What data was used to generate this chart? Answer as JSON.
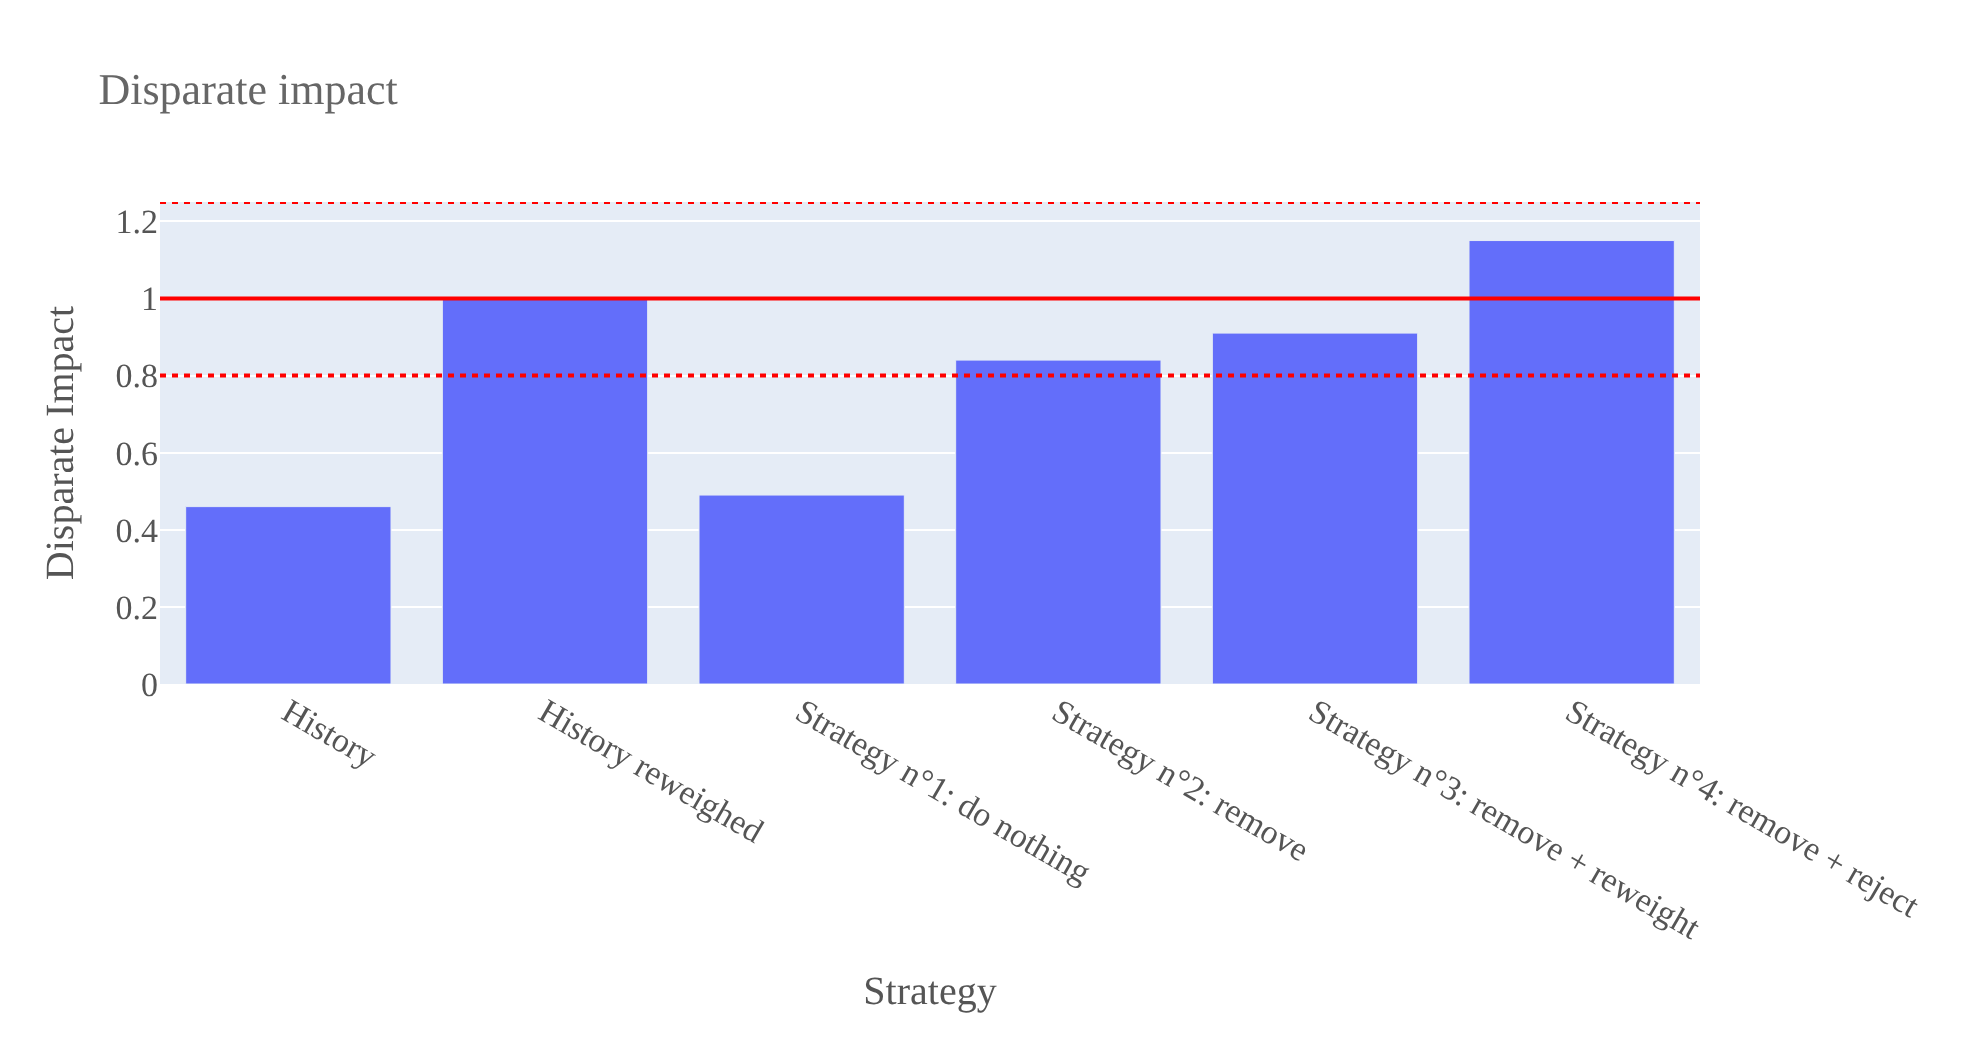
{
  "chart_data": {
    "type": "bar",
    "title": "Disparate impact",
    "xlabel": "Strategy",
    "ylabel": "Disparate Impact",
    "categories": [
      "History",
      "History reweighed",
      "Strategy n°1: do nothing",
      "Strategy n°2: remove",
      "Strategy n°3: remove + reweight",
      "Strategy n°4: remove + reject"
    ],
    "values": [
      0.46,
      1.0,
      0.49,
      0.84,
      0.91,
      1.15
    ],
    "color": "#636efa",
    "ylim": [
      0,
      1.25
    ],
    "yticks": [
      0,
      0.2,
      0.4,
      0.6,
      0.8,
      1,
      1.2
    ],
    "grid": "y",
    "legend": false,
    "ref_lines": [
      {
        "axis": "y",
        "value": 1,
        "color": "#ff0000",
        "line_style": "solid"
      },
      {
        "axis": "y",
        "value": 0.8,
        "color": "#ff0000",
        "line_style": "dotted"
      },
      {
        "axis": "y",
        "value": 1.25,
        "color": "#ff0000",
        "line_style": "dotted"
      }
    ]
  }
}
